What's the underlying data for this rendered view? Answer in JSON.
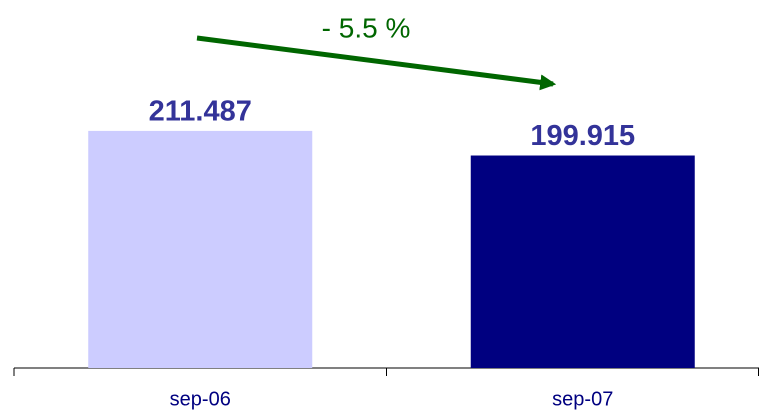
{
  "chart_data": {
    "type": "bar",
    "annotation": "- 5.5 %",
    "categories": [
      "sep-06",
      "sep-07"
    ],
    "series": [
      {
        "values": [
          211.487,
          199.915
        ],
        "colors": [
          "#ccccff",
          "#000080"
        ]
      }
    ],
    "ylim": [
      100,
      250
    ]
  }
}
